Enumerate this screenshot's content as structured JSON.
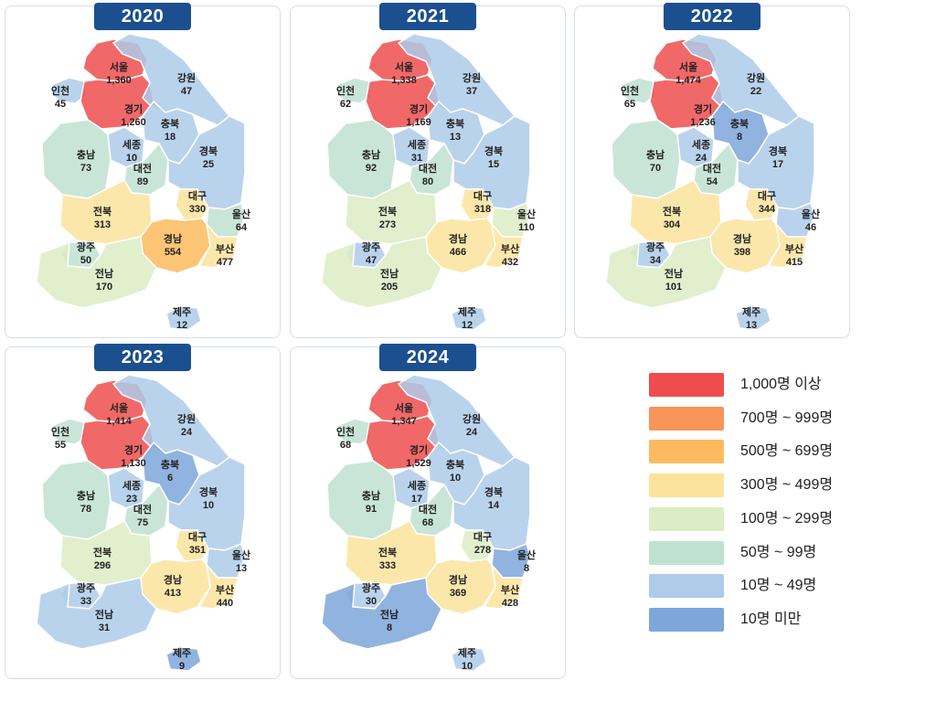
{
  "legend": [
    {
      "label": "1,000명 이상",
      "color": "#ef4d4d"
    },
    {
      "label": "700명 ~ 999명",
      "color": "#f8955a"
    },
    {
      "label": "500명 ~ 699명",
      "color": "#fbbb5e"
    },
    {
      "label": "300명 ~ 499명",
      "color": "#fbe39c"
    },
    {
      "label": "100명 ~ 299명",
      "color": "#dcecc4"
    },
    {
      "label": "50명 ~ 99명",
      "color": "#bfe1d1"
    },
    {
      "label": "10명 ~ 49명",
      "color": "#aecbe9"
    },
    {
      "label": "10명 미만",
      "color": "#7ea6da"
    }
  ],
  "regions": [
    "서울",
    "인천",
    "경기",
    "강원",
    "충북",
    "세종",
    "충남",
    "대전",
    "경북",
    "대구",
    "울산",
    "전북",
    "경남",
    "부산",
    "광주",
    "전남",
    "제주"
  ],
  "maps": [
    {
      "year": "2020",
      "values": {
        "서울": "1,360",
        "인천": "45",
        "경기": "1,260",
        "강원": "47",
        "충북": "18",
        "세종": "10",
        "충남": "73",
        "대전": "89",
        "경북": "25",
        "대구": "330",
        "울산": "64",
        "전북": "313",
        "경남": "554",
        "부산": "477",
        "광주": "50",
        "전남": "170",
        "제주": "12"
      }
    },
    {
      "year": "2021",
      "values": {
        "서울": "1,338",
        "인천": "62",
        "경기": "1,169",
        "강원": "37",
        "충북": "13",
        "세종": "31",
        "충남": "92",
        "대전": "80",
        "경북": "15",
        "대구": "318",
        "울산": "110",
        "전북": "273",
        "경남": "466",
        "부산": "432",
        "광주": "47",
        "전남": "205",
        "제주": "12"
      }
    },
    {
      "year": "2022",
      "values": {
        "서울": "1,474",
        "인천": "65",
        "경기": "1,236",
        "강원": "22",
        "충북": "8",
        "세종": "24",
        "충남": "70",
        "대전": "54",
        "경북": "17",
        "대구": "344",
        "울산": "46",
        "전북": "304",
        "경남": "398",
        "부산": "415",
        "광주": "34",
        "전남": "101",
        "제주": "13"
      }
    },
    {
      "year": "2023",
      "values": {
        "서울": "1,414",
        "인천": "55",
        "경기": "1,130",
        "강원": "24",
        "충북": "6",
        "세종": "23",
        "충남": "78",
        "대전": "75",
        "경북": "10",
        "대구": "351",
        "울산": "13",
        "전북": "296",
        "경남": "413",
        "부산": "440",
        "광주": "33",
        "전남": "31",
        "제주": "9"
      }
    },
    {
      "year": "2024",
      "values": {
        "서울": "1,347",
        "인천": "68",
        "경기": "1,529",
        "강원": "24",
        "충북": "10",
        "세종": "17",
        "충남": "91",
        "대전": "68",
        "경북": "14",
        "대구": "278",
        "울산": "8",
        "전북": "333",
        "경남": "369",
        "부산": "428",
        "광주": "30",
        "전남": "8",
        "제주": "10"
      }
    }
  ]
}
